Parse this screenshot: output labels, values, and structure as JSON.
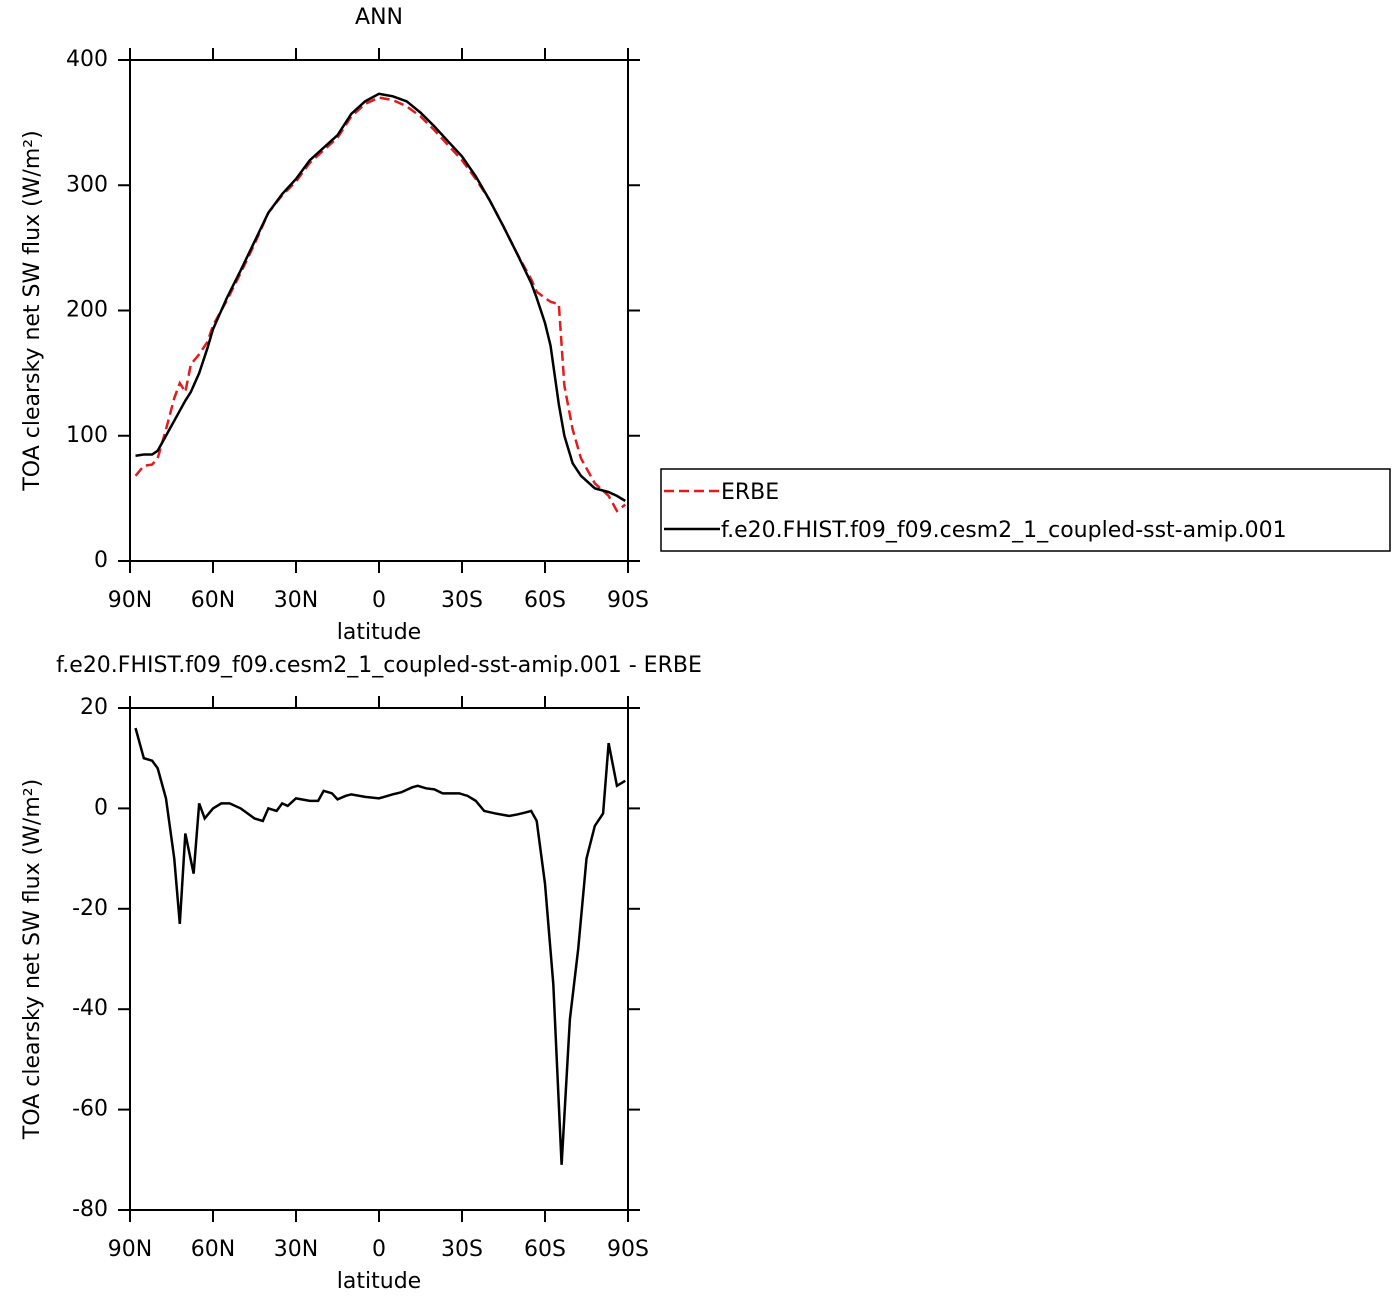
{
  "chart_data": [
    {
      "type": "line",
      "title": "ANN",
      "xlabel": "latitude",
      "ylabel": "TOA clearsky net SW flux (W/m²)",
      "x": [
        88,
        85,
        82,
        80,
        77,
        74,
        72,
        70,
        68,
        65,
        62,
        60,
        55,
        50,
        45,
        40,
        35,
        30,
        25,
        20,
        15,
        10,
        5,
        0,
        -5,
        -10,
        -15,
        -20,
        -25,
        -30,
        -35,
        -40,
        -45,
        -50,
        -55,
        -57,
        -60,
        -62,
        -65,
        -67,
        -70,
        -73,
        -78,
        -83,
        -86,
        -89
      ],
      "series": [
        {
          "name": "ERBE",
          "color": "#e41a1c",
          "dash": true,
          "values": [
            68,
            76,
            77,
            82,
            105,
            130,
            142,
            135,
            157,
            165,
            175,
            188,
            208,
            230,
            253,
            278,
            292,
            303,
            318,
            328,
            338,
            355,
            365,
            370,
            368,
            363,
            355,
            344,
            332,
            320,
            305,
            288,
            267,
            245,
            225,
            215,
            210,
            207,
            205,
            140,
            105,
            82,
            62,
            52,
            40,
            45
          ]
        },
        {
          "name": "f.e20.FHIST.f09_f09.cesm2_1_coupled-sst-amip.001",
          "color": "#000000",
          "dash": false,
          "values": [
            84,
            85,
            85,
            88,
            100,
            112,
            120,
            128,
            135,
            150,
            170,
            185,
            210,
            232,
            255,
            278,
            293,
            305,
            320,
            330,
            340,
            357,
            367,
            373,
            371,
            367,
            358,
            347,
            335,
            323,
            307,
            288,
            267,
            245,
            222,
            210,
            190,
            172,
            125,
            100,
            78,
            68,
            58,
            55,
            52,
            48
          ]
        }
      ],
      "xlim": [
        90,
        -90
      ],
      "xticks": [
        {
          "value": 90,
          "label": "90N"
        },
        {
          "value": 60,
          "label": "60N"
        },
        {
          "value": 30,
          "label": "30N"
        },
        0,
        {
          "value": -30,
          "label": "30S"
        },
        {
          "value": -60,
          "label": "60S"
        },
        {
          "value": -90,
          "label": "90S"
        }
      ],
      "ylim": [
        0,
        400
      ],
      "yticks": [
        0,
        100,
        200,
        300,
        400
      ],
      "legend": "right"
    },
    {
      "type": "line",
      "title": "f.e20.FHIST.f09_f09.cesm2_1_coupled-sst-amip.001 - ERBE",
      "xlabel": "latitude",
      "ylabel": "TOA clearsky net SW flux (W/m²)",
      "x": [
        88,
        85,
        82,
        80,
        77,
        74,
        72,
        70,
        67,
        65,
        63,
        60,
        57,
        54,
        50,
        45,
        42,
        40,
        37,
        35,
        33,
        30,
        25,
        22,
        20,
        17,
        15,
        12,
        10,
        5,
        0,
        -5,
        -8,
        -12,
        -14,
        -17,
        -20,
        -23,
        -26,
        -29,
        -32,
        -35,
        -38,
        -42,
        -47,
        -50,
        -53,
        -55,
        -57,
        -60,
        -63,
        -66,
        -69,
        -72,
        -75,
        -78,
        -81,
        -83,
        -86,
        -89
      ],
      "series": [
        {
          "color": "#000000",
          "dash": false,
          "values": [
            16,
            10,
            9.5,
            8,
            2,
            -10,
            -23,
            -5,
            -13,
            1,
            -2,
            0,
            1,
            1,
            0,
            -2,
            -2.5,
            0,
            -0.5,
            1,
            0.5,
            2,
            1.5,
            1.5,
            3.5,
            3,
            1.8,
            2.5,
            2.8,
            2.3,
            2,
            2.8,
            3.2,
            4.2,
            4.5,
            4,
            3.8,
            3,
            3,
            3,
            2.5,
            1.5,
            -0.5,
            -1,
            -1.5,
            -1.2,
            -0.8,
            -0.5,
            -2.5,
            -15,
            -35,
            -71,
            -42,
            -28,
            -10,
            -3.5,
            -1,
            13,
            4.5,
            5.5
          ]
        }
      ],
      "xlim": [
        90,
        -90
      ],
      "xticks": [
        {
          "value": 90,
          "label": "90N"
        },
        {
          "value": 60,
          "label": "60N"
        },
        {
          "value": 30,
          "label": "30N"
        },
        0,
        {
          "value": -30,
          "label": "30S"
        },
        {
          "value": -60,
          "label": "60S"
        },
        {
          "value": -90,
          "label": "90S"
        }
      ],
      "ylim": [
        -80,
        20
      ],
      "yticks": [
        -80,
        -60,
        -40,
        -20,
        0,
        20
      ]
    }
  ]
}
